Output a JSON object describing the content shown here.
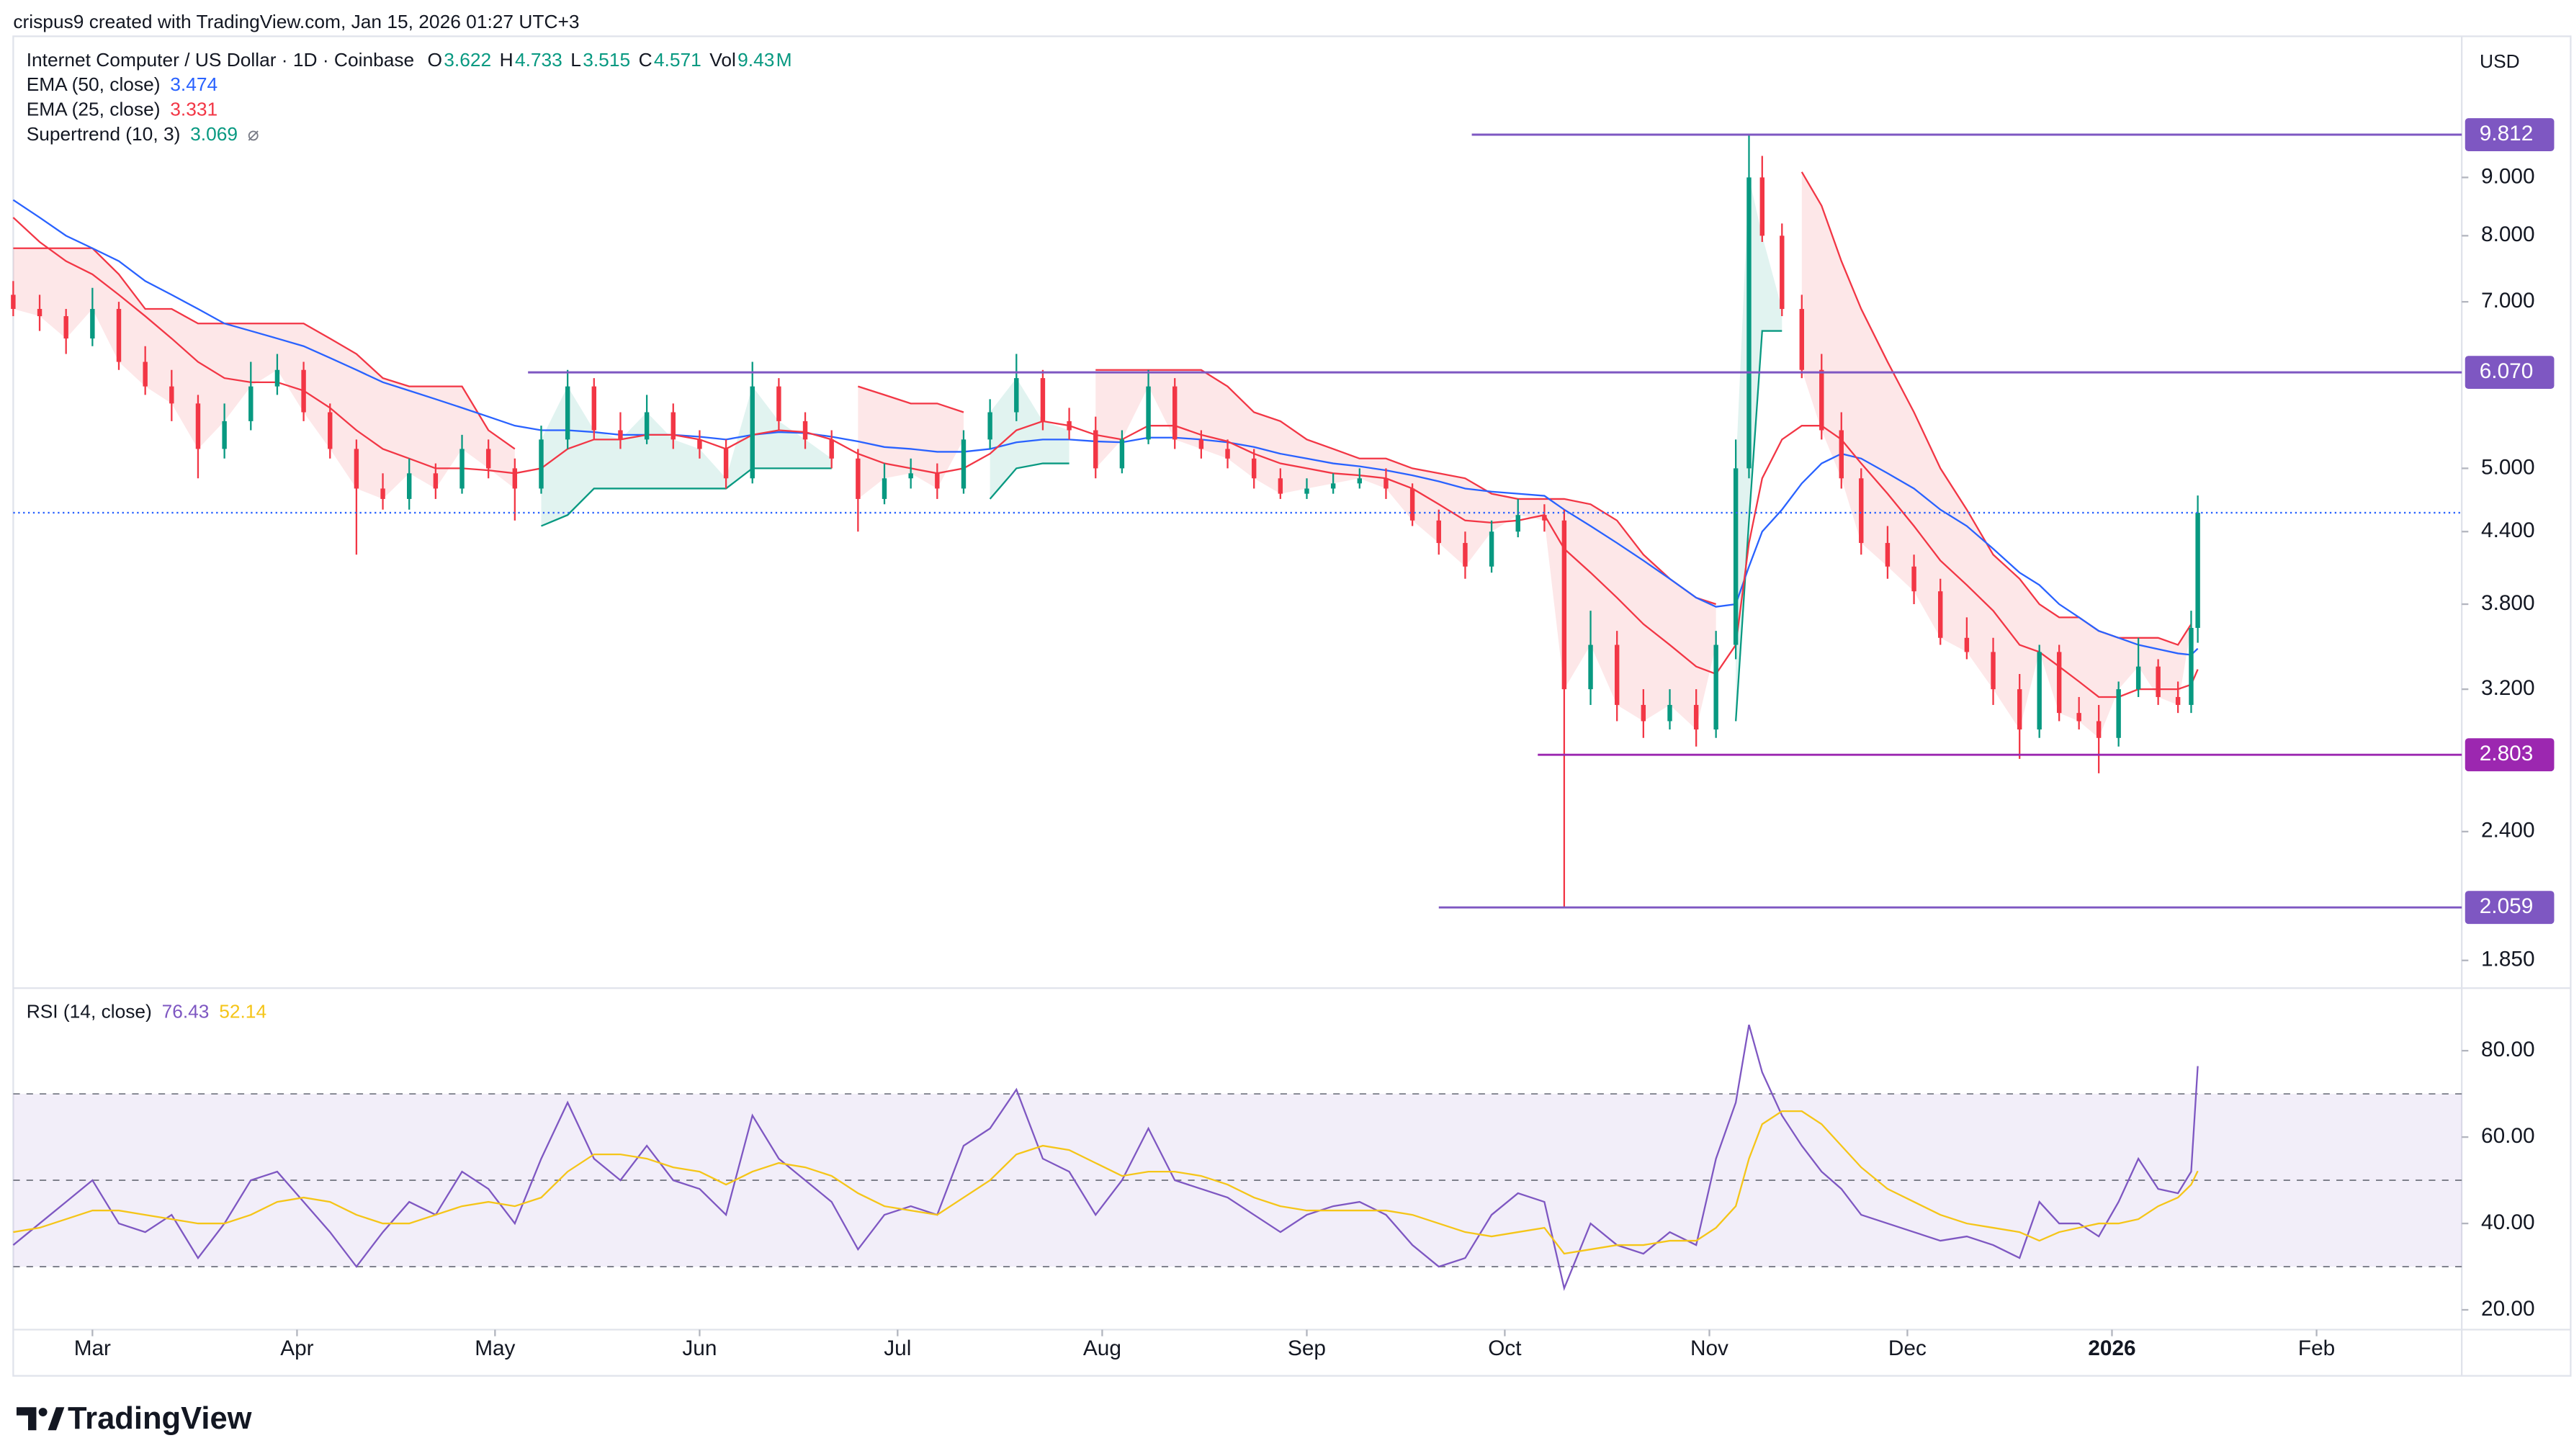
{
  "header": {
    "attribution": "crispus9 created with TradingView.com, Jan 15, 2026 01:27 UTC+3",
    "logo": "TradingView"
  },
  "chart_data": [
    {
      "type": "candlestick",
      "title": "Internet Computer / US Dollar · 1D · Coinbase",
      "currency": "USD",
      "legend_labels": {
        "open": "O",
        "high": "H",
        "low": "L",
        "close": "C",
        "volume": "Vol"
      },
      "volume": 9.43,
      "volume_unit": "M",
      "up_color": "#089981",
      "down_color": "#f23645",
      "x": [
        0,
        4,
        8,
        12,
        16,
        20,
        24,
        28,
        32,
        36,
        40,
        44,
        48,
        52,
        56,
        60,
        64,
        68,
        72,
        76,
        80,
        84,
        88,
        92,
        96,
        100,
        104,
        108,
        112,
        116,
        120,
        124,
        128,
        132,
        136,
        140,
        144,
        148,
        152,
        156,
        160,
        164,
        168,
        172,
        176,
        180,
        184,
        188,
        192,
        196,
        200,
        204,
        208,
        212,
        216,
        220,
        224,
        228,
        232,
        235,
        239,
        243,
        247,
        251,
        255,
        258,
        261,
        263,
        265,
        268,
        271,
        274,
        277,
        280,
        284,
        288,
        292,
        296,
        300,
        304,
        307,
        310,
        313,
        316,
        319,
        322,
        325,
        328,
        330,
        331
      ],
      "open": [
        7.1,
        6.9,
        6.8,
        6.5,
        6.9,
        6.2,
        5.9,
        5.7,
        5.2,
        5.5,
        5.9,
        6.1,
        5.6,
        5.2,
        4.8,
        4.7,
        4.95,
        4.8,
        5.2,
        5.0,
        4.8,
        5.3,
        5.9,
        5.4,
        5.3,
        5.6,
        5.3,
        5.2,
        4.9,
        5.9,
        5.5,
        5.3,
        5.1,
        4.7,
        4.9,
        4.95,
        4.8,
        5.3,
        5.6,
        6.0,
        5.5,
        5.4,
        5.0,
        5.3,
        5.9,
        5.3,
        5.2,
        5.1,
        4.9,
        4.75,
        4.8,
        4.85,
        4.9,
        4.8,
        4.5,
        4.3,
        4.1,
        4.4,
        4.55,
        4.5,
        3.2,
        3.5,
        3.1,
        3.0,
        3.1,
        2.95,
        3.5,
        5.0,
        9.0,
        8.0,
        6.9,
        6.1,
        5.4,
        4.9,
        4.3,
        4.1,
        3.9,
        3.55,
        3.45,
        3.2,
        2.95,
        3.45,
        3.05,
        3.0,
        2.9,
        3.2,
        3.35,
        3.15,
        3.1,
        3.622
      ],
      "high": [
        7.3,
        7.1,
        6.9,
        7.2,
        7.0,
        6.4,
        6.1,
        5.8,
        5.7,
        6.2,
        6.3,
        6.2,
        5.7,
        5.3,
        4.95,
        5.1,
        5.05,
        5.35,
        5.3,
        5.1,
        5.45,
        6.1,
        6.0,
        5.6,
        5.8,
        5.7,
        5.4,
        5.3,
        6.2,
        6.0,
        5.6,
        5.4,
        5.2,
        5.05,
        5.1,
        5.05,
        5.4,
        5.75,
        6.3,
        6.1,
        5.65,
        5.55,
        5.4,
        6.1,
        6.0,
        5.4,
        5.3,
        5.2,
        5.0,
        4.9,
        4.95,
        5.0,
        5.0,
        4.85,
        4.6,
        4.4,
        4.5,
        4.7,
        4.65,
        4.6,
        3.75,
        3.6,
        3.2,
        3.2,
        3.2,
        3.6,
        5.3,
        9.812,
        9.4,
        8.2,
        7.1,
        6.3,
        5.6,
        5.0,
        4.45,
        4.2,
        4.0,
        3.7,
        3.55,
        3.3,
        3.5,
        3.5,
        3.15,
        3.1,
        3.25,
        3.55,
        3.4,
        3.25,
        3.75,
        4.733
      ],
      "low": [
        6.8,
        6.6,
        6.3,
        6.4,
        6.1,
        5.8,
        5.5,
        4.9,
        5.1,
        5.4,
        5.8,
        5.5,
        5.1,
        4.2,
        4.6,
        4.6,
        4.7,
        4.75,
        4.9,
        4.5,
        4.75,
        5.2,
        5.3,
        5.2,
        5.25,
        5.2,
        5.1,
        4.8,
        4.85,
        5.4,
        5.2,
        5.0,
        4.4,
        4.65,
        4.8,
        4.7,
        4.75,
        5.2,
        5.5,
        5.4,
        5.3,
        4.9,
        4.95,
        5.25,
        5.2,
        5.1,
        5.0,
        4.8,
        4.7,
        4.7,
        4.75,
        4.8,
        4.7,
        4.45,
        4.2,
        4.0,
        4.05,
        4.35,
        4.4,
        2.059,
        3.1,
        3.0,
        2.9,
        2.95,
        2.85,
        2.9,
        3.4,
        4.9,
        7.9,
        6.8,
        6.0,
        5.3,
        4.8,
        4.2,
        4.0,
        3.8,
        3.5,
        3.4,
        3.1,
        2.78,
        2.9,
        3.0,
        2.95,
        2.7,
        2.85,
        3.15,
        3.1,
        3.05,
        3.05,
        3.515
      ],
      "close": [
        6.9,
        6.8,
        6.5,
        6.9,
        6.2,
        5.9,
        5.7,
        5.2,
        5.5,
        5.9,
        6.1,
        5.6,
        5.2,
        4.8,
        4.7,
        4.95,
        4.8,
        5.2,
        5.0,
        4.8,
        5.3,
        5.9,
        5.4,
        5.3,
        5.6,
        5.3,
        5.2,
        4.9,
        5.9,
        5.5,
        5.3,
        5.1,
        4.7,
        4.9,
        4.95,
        4.8,
        5.3,
        5.6,
        6.0,
        5.5,
        5.4,
        5.0,
        5.3,
        5.9,
        5.3,
        5.2,
        5.1,
        4.9,
        4.75,
        4.8,
        4.85,
        4.9,
        4.8,
        4.5,
        4.3,
        4.1,
        4.4,
        4.55,
        4.5,
        3.2,
        3.5,
        3.1,
        3.0,
        3.1,
        2.95,
        3.5,
        5.0,
        9.0,
        8.0,
        6.9,
        6.1,
        5.4,
        4.9,
        4.3,
        4.1,
        3.9,
        3.55,
        3.45,
        3.2,
        2.95,
        3.45,
        3.05,
        3.0,
        2.9,
        3.2,
        3.35,
        3.15,
        3.1,
        3.622,
        4.571
      ],
      "last_price_color": "#2962ff",
      "series": [
        {
          "name": "EMA (50, close)",
          "color": "#2962ff",
          "values": [
            8.6,
            8.3,
            8.0,
            7.8,
            7.6,
            7.3,
            7.1,
            6.9,
            6.7,
            6.6,
            6.5,
            6.4,
            6.25,
            6.1,
            5.95,
            5.85,
            5.75,
            5.65,
            5.55,
            5.45,
            5.4,
            5.4,
            5.38,
            5.35,
            5.35,
            5.35,
            5.33,
            5.3,
            5.35,
            5.38,
            5.37,
            5.33,
            5.28,
            5.22,
            5.2,
            5.17,
            5.17,
            5.2,
            5.27,
            5.3,
            5.3,
            5.28,
            5.27,
            5.32,
            5.32,
            5.3,
            5.27,
            5.22,
            5.15,
            5.1,
            5.05,
            5.02,
            4.98,
            4.93,
            4.87,
            4.8,
            4.77,
            4.75,
            4.73,
            4.6,
            4.45,
            4.3,
            4.15,
            4.0,
            3.85,
            3.78,
            3.8,
            4.1,
            4.4,
            4.6,
            4.85,
            5.05,
            5.15,
            5.1,
            4.95,
            4.8,
            4.6,
            4.45,
            4.25,
            4.05,
            3.95,
            3.8,
            3.7,
            3.6,
            3.55,
            3.5,
            3.47,
            3.44,
            3.43,
            3.474
          ]
        },
        {
          "name": "EMA (25, close)",
          "color": "#f23645",
          "values": [
            8.3,
            7.9,
            7.6,
            7.4,
            7.1,
            6.8,
            6.5,
            6.2,
            6.0,
            5.95,
            5.95,
            5.85,
            5.65,
            5.4,
            5.2,
            5.1,
            5.0,
            5.0,
            4.98,
            4.95,
            5.0,
            5.2,
            5.3,
            5.3,
            5.35,
            5.35,
            5.3,
            5.2,
            5.35,
            5.4,
            5.38,
            5.3,
            5.15,
            5.05,
            5.0,
            4.95,
            5.0,
            5.15,
            5.4,
            5.5,
            5.45,
            5.35,
            5.3,
            5.45,
            5.45,
            5.35,
            5.28,
            5.15,
            5.05,
            5.0,
            4.95,
            4.93,
            4.9,
            4.8,
            4.65,
            4.5,
            4.48,
            4.5,
            4.55,
            4.25,
            4.05,
            3.85,
            3.65,
            3.5,
            3.35,
            3.3,
            3.5,
            4.3,
            4.9,
            5.3,
            5.45,
            5.45,
            5.3,
            5.05,
            4.75,
            4.45,
            4.15,
            3.95,
            3.75,
            3.5,
            3.45,
            3.35,
            3.25,
            3.15,
            3.15,
            3.2,
            3.2,
            3.2,
            3.23,
            3.331
          ]
        },
        {
          "name": "Supertrend (10, 3)",
          "symbol": "⌀",
          "color_up": "#089981",
          "color_down": "#f23645",
          "up_values": [
            null,
            null,
            null,
            null,
            null,
            null,
            null,
            null,
            null,
            null,
            null,
            null,
            null,
            null,
            null,
            null,
            null,
            null,
            null,
            null,
            4.45,
            4.55,
            4.8,
            4.8,
            4.8,
            4.8,
            4.8,
            4.8,
            5.0,
            5.0,
            5.0,
            5.0,
            null,
            null,
            null,
            null,
            null,
            4.7,
            5.0,
            5.05,
            5.05,
            null,
            null,
            null,
            null,
            null,
            null,
            null,
            null,
            null,
            null,
            null,
            null,
            null,
            null,
            null,
            null,
            null,
            null,
            null,
            null,
            null,
            null,
            null,
            null,
            null,
            3.0,
            4.5,
            6.6,
            6.6,
            null,
            null,
            null,
            null,
            null,
            null,
            null,
            null,
            null,
            null,
            null,
            null,
            null,
            null,
            null,
            null,
            null,
            null,
            null,
            3.069
          ],
          "down_values": [
            7.8,
            7.8,
            7.8,
            7.8,
            7.4,
            6.9,
            6.9,
            6.7,
            6.7,
            6.7,
            6.7,
            6.7,
            6.5,
            6.3,
            6.0,
            5.9,
            5.9,
            5.9,
            5.4,
            5.2,
            null,
            null,
            null,
            null,
            null,
            null,
            null,
            null,
            null,
            null,
            null,
            null,
            5.9,
            5.8,
            5.7,
            5.7,
            5.6,
            null,
            null,
            null,
            null,
            6.1,
            6.1,
            6.1,
            6.1,
            6.1,
            5.9,
            5.6,
            5.5,
            5.3,
            5.2,
            5.1,
            5.1,
            5.0,
            4.95,
            4.9,
            4.75,
            4.7,
            4.7,
            4.7,
            4.65,
            4.5,
            4.2,
            4.0,
            3.85,
            3.8,
            null,
            null,
            null,
            null,
            9.1,
            8.5,
            7.6,
            6.9,
            6.2,
            5.6,
            5.0,
            4.6,
            4.2,
            4.0,
            3.8,
            3.7,
            3.7,
            3.6,
            3.55,
            3.55,
            3.55,
            3.5,
            3.65,
            null
          ]
        }
      ],
      "hlines": [
        {
          "value": 9.812,
          "from": 221,
          "color": "#7e57c2"
        },
        {
          "value": {
            "value": 6.07,
            "label": "6.070"
          },
          "from": 78,
          "color": "#7e57c2"
        },
        {
          "value": 2.803,
          "from": 231,
          "color": "#9c27b0"
        },
        {
          "value": 2.059,
          "from": 216,
          "color": "#7e57c2"
        }
      ],
      "xlim": [
        0,
        371
      ],
      "xticks": [
        {
          "value": 12,
          "label": "Mar"
        },
        {
          "value": 43,
          "label": "Apr"
        },
        {
          "value": 73,
          "label": "May"
        },
        {
          "value": 104,
          "label": "Jun"
        },
        {
          "value": 134,
          "label": "Jul"
        },
        {
          "value": 165,
          "label": "Aug"
        },
        {
          "value": 196,
          "label": "Sep"
        },
        {
          "value": 226,
          "label": "Oct"
        },
        {
          "value": 257,
          "label": "Nov"
        },
        {
          "value": 287,
          "label": "Dec"
        },
        {
          "value": 318,
          "label": "2026",
          "bold": true
        },
        {
          "value": 349,
          "label": "Feb"
        }
      ],
      "ylim": [
        1.755,
        11.97
      ],
      "log_scale": true,
      "grid": false,
      "yticks": [
        {
          "value": 1.85,
          "label": "1.850"
        },
        {
          "value": 2.4,
          "label": "2.400"
        },
        {
          "value": 3.2,
          "label": "3.200"
        },
        {
          "value": 3.8,
          "label": "3.800"
        },
        {
          "value": 4.4,
          "label": "4.400"
        },
        {
          "value": 5,
          "label": "5.000"
        },
        {
          "value": 7,
          "label": "7.000"
        },
        {
          "value": 8,
          "label": "8.000"
        },
        {
          "value": 9,
          "label": "9.000"
        }
      ]
    },
    {
      "type": "line",
      "title": "RSI (14, close)",
      "series": [
        {
          "color": "#7e57c2",
          "values": [
            35,
            40,
            45,
            50,
            40,
            38,
            42,
            32,
            40,
            50,
            52,
            45,
            38,
            30,
            38,
            45,
            42,
            52,
            48,
            40,
            55,
            68,
            55,
            50,
            58,
            50,
            48,
            42,
            65,
            55,
            50,
            45,
            34,
            42,
            44,
            42,
            58,
            62,
            71,
            55,
            52,
            42,
            50,
            62,
            50,
            48,
            46,
            42,
            38,
            42,
            44,
            45,
            42,
            35,
            30,
            32,
            42,
            47,
            45,
            25,
            40,
            35,
            33,
            38,
            35,
            55,
            68,
            86,
            75,
            65,
            58,
            52,
            48,
            42,
            40,
            38,
            36,
            37,
            35,
            32,
            45,
            40,
            40,
            37,
            45,
            55,
            48,
            47,
            52,
            76.43
          ]
        },
        {
          "color": "#f5c518",
          "values": [
            38,
            39,
            41,
            43,
            43,
            42,
            41,
            40,
            40,
            42,
            45,
            46,
            45,
            42,
            40,
            40,
            42,
            44,
            45,
            44,
            46,
            52,
            56,
            56,
            55,
            53,
            52,
            49,
            52,
            54,
            53,
            51,
            47,
            44,
            43,
            42,
            46,
            50,
            56,
            58,
            57,
            54,
            51,
            52,
            52,
            51,
            49,
            46,
            44,
            43,
            43,
            43,
            43,
            42,
            40,
            38,
            37,
            38,
            39,
            33,
            34,
            35,
            35,
            36,
            36,
            39,
            44,
            55,
            63,
            66,
            66,
            63,
            58,
            53,
            48,
            45,
            42,
            40,
            39,
            38,
            36,
            38,
            39,
            40,
            40,
            41,
            44,
            46,
            49,
            52.14
          ]
        }
      ],
      "band_lines": [
        30,
        50,
        70
      ],
      "band_color": "#7e57c2",
      "ylim": [
        15.8,
        94.1
      ],
      "yticks": [
        {
          "value": 20,
          "label": "20.00"
        },
        {
          "value": 40,
          "label": "40.00"
        },
        {
          "value": 60,
          "label": "60.00"
        },
        {
          "value": 80,
          "label": "80.00"
        }
      ]
    }
  ]
}
